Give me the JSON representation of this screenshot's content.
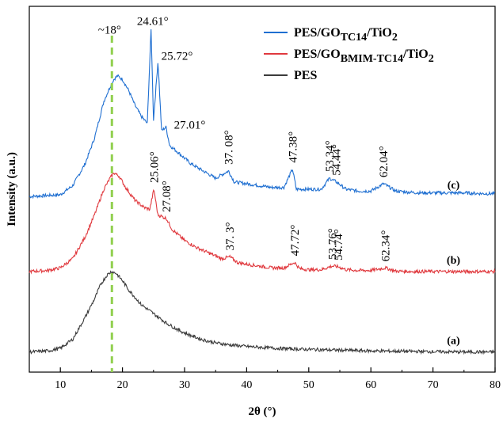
{
  "chart_data": {
    "type": "line",
    "title": "",
    "xlabel": "2θ (°)",
    "ylabel": "Intensity (a.u.)",
    "xlim": [
      5,
      80
    ],
    "xticks": [
      "10",
      "20",
      "30",
      "40",
      "50",
      "60",
      "70",
      "80"
    ],
    "grid": false,
    "y_ticks_shown": false,
    "legend_position": "top-right",
    "reference_line": {
      "x": 18.3,
      "label": "~18°",
      "color": "#92d050",
      "style": "dashed"
    },
    "series": [
      {
        "name": "PES/GOTC14/TiO2",
        "legend": {
          "base": "PES/GO",
          "sub": "TC14",
          "mid": "/TiO",
          "end": "2"
        },
        "color": "#1f6fd1",
        "curve_label": "(c)",
        "baseline": 0.48,
        "points": [
          [
            5,
            0.48
          ],
          [
            10,
            0.485
          ],
          [
            12,
            0.51
          ],
          [
            14,
            0.57
          ],
          [
            15.5,
            0.64
          ],
          [
            17,
            0.74
          ],
          [
            18,
            0.78
          ],
          [
            18.6,
            0.8
          ],
          [
            19.2,
            0.81
          ],
          [
            20,
            0.8
          ],
          [
            21,
            0.77
          ],
          [
            22,
            0.73
          ],
          [
            23,
            0.7
          ],
          [
            24,
            0.68
          ],
          [
            24.61,
            0.94
          ],
          [
            25,
            0.69
          ],
          [
            25.72,
            0.85
          ],
          [
            26.3,
            0.66
          ],
          [
            27.01,
            0.67
          ],
          [
            27.6,
            0.62
          ],
          [
            29,
            0.6
          ],
          [
            31,
            0.57
          ],
          [
            33,
            0.55
          ],
          [
            35,
            0.53
          ],
          [
            37.08,
            0.55
          ],
          [
            38,
            0.52
          ],
          [
            40,
            0.515
          ],
          [
            42,
            0.51
          ],
          [
            44,
            0.505
          ],
          [
            46,
            0.505
          ],
          [
            47.38,
            0.555
          ],
          [
            48,
            0.5
          ],
          [
            50,
            0.5
          ],
          [
            52,
            0.5
          ],
          [
            53.34,
            0.53
          ],
          [
            54.44,
            0.52
          ],
          [
            56,
            0.5
          ],
          [
            58,
            0.495
          ],
          [
            60,
            0.495
          ],
          [
            62.04,
            0.515
          ],
          [
            64,
            0.495
          ],
          [
            66,
            0.492
          ],
          [
            68,
            0.49
          ],
          [
            70,
            0.49
          ],
          [
            72,
            0.49
          ],
          [
            75,
            0.49
          ],
          [
            78,
            0.488
          ],
          [
            80,
            0.488
          ]
        ],
        "peaks": [
          {
            "x": 24.61,
            "label": "24.61°"
          },
          {
            "x": 25.72,
            "label": "25.72°"
          },
          {
            "x": 27.01,
            "label": "27.01°"
          },
          {
            "x": 37.08,
            "label": "37. 08°"
          },
          {
            "x": 47.38,
            "label": "47.38°"
          },
          {
            "x": 53.34,
            "label": "53.34°"
          },
          {
            "x": 54.44,
            "label": "54.44°"
          },
          {
            "x": 62.04,
            "label": "62.04°"
          }
        ]
      },
      {
        "name": "PES/GOBMIM-TC14/TiO2",
        "legend": {
          "base": "PES/GO",
          "sub": "BMIM-TC14",
          "mid": "/TiO",
          "end": "2"
        },
        "color": "#e0393e",
        "curve_label": "(b)",
        "baseline": 0.275,
        "points": [
          [
            5,
            0.275
          ],
          [
            8,
            0.278
          ],
          [
            10,
            0.285
          ],
          [
            12,
            0.31
          ],
          [
            14,
            0.37
          ],
          [
            15.5,
            0.43
          ],
          [
            17,
            0.5
          ],
          [
            18,
            0.53
          ],
          [
            18.6,
            0.545
          ],
          [
            19.5,
            0.535
          ],
          [
            20.5,
            0.505
          ],
          [
            22,
            0.47
          ],
          [
            23.5,
            0.45
          ],
          [
            24.4,
            0.445
          ],
          [
            25.06,
            0.5
          ],
          [
            25.7,
            0.43
          ],
          [
            27.08,
            0.42
          ],
          [
            28,
            0.39
          ],
          [
            30,
            0.36
          ],
          [
            32,
            0.34
          ],
          [
            34,
            0.325
          ],
          [
            36,
            0.31
          ],
          [
            37.3,
            0.315
          ],
          [
            38.5,
            0.3
          ],
          [
            40,
            0.295
          ],
          [
            42,
            0.29
          ],
          [
            44,
            0.285
          ],
          [
            46,
            0.285
          ],
          [
            47.72,
            0.3
          ],
          [
            48.5,
            0.283
          ],
          [
            50,
            0.28
          ],
          [
            52,
            0.28
          ],
          [
            53.76,
            0.29
          ],
          [
            54.74,
            0.288
          ],
          [
            56,
            0.28
          ],
          [
            58,
            0.278
          ],
          [
            60,
            0.278
          ],
          [
            62.34,
            0.285
          ],
          [
            64,
            0.276
          ],
          [
            67,
            0.275
          ],
          [
            70,
            0.275
          ],
          [
            75,
            0.275
          ],
          [
            80,
            0.275
          ]
        ],
        "peaks": [
          {
            "x": 25.06,
            "label": "25.06°"
          },
          {
            "x": 27.08,
            "label": "27.08°"
          },
          {
            "x": 37.3,
            "label": "37. 3°"
          },
          {
            "x": 47.72,
            "label": "47.72°"
          },
          {
            "x": 53.76,
            "label": "53.76°"
          },
          {
            "x": 54.74,
            "label": "54.74°"
          },
          {
            "x": 62.34,
            "label": "62.34°"
          }
        ]
      },
      {
        "name": "PES",
        "legend": {
          "base": "PES",
          "sub": "",
          "mid": "",
          "end": ""
        },
        "color": "#3b3b3b",
        "curve_label": "(a)",
        "baseline": 0.055,
        "points": [
          [
            5,
            0.055
          ],
          [
            8,
            0.058
          ],
          [
            10,
            0.065
          ],
          [
            12,
            0.09
          ],
          [
            14,
            0.15
          ],
          [
            15.5,
            0.2
          ],
          [
            16.5,
            0.24
          ],
          [
            17.5,
            0.265
          ],
          [
            18.2,
            0.275
          ],
          [
            19,
            0.27
          ],
          [
            20,
            0.25
          ],
          [
            21,
            0.225
          ],
          [
            22,
            0.205
          ],
          [
            23,
            0.185
          ],
          [
            25,
            0.16
          ],
          [
            27,
            0.135
          ],
          [
            29,
            0.115
          ],
          [
            31,
            0.1
          ],
          [
            33,
            0.088
          ],
          [
            35,
            0.08
          ],
          [
            37,
            0.075
          ],
          [
            40,
            0.07
          ],
          [
            45,
            0.065
          ],
          [
            50,
            0.062
          ],
          [
            55,
            0.06
          ],
          [
            60,
            0.058
          ],
          [
            65,
            0.057
          ],
          [
            70,
            0.056
          ],
          [
            75,
            0.055
          ],
          [
            80,
            0.055
          ]
        ],
        "peaks": []
      }
    ]
  }
}
